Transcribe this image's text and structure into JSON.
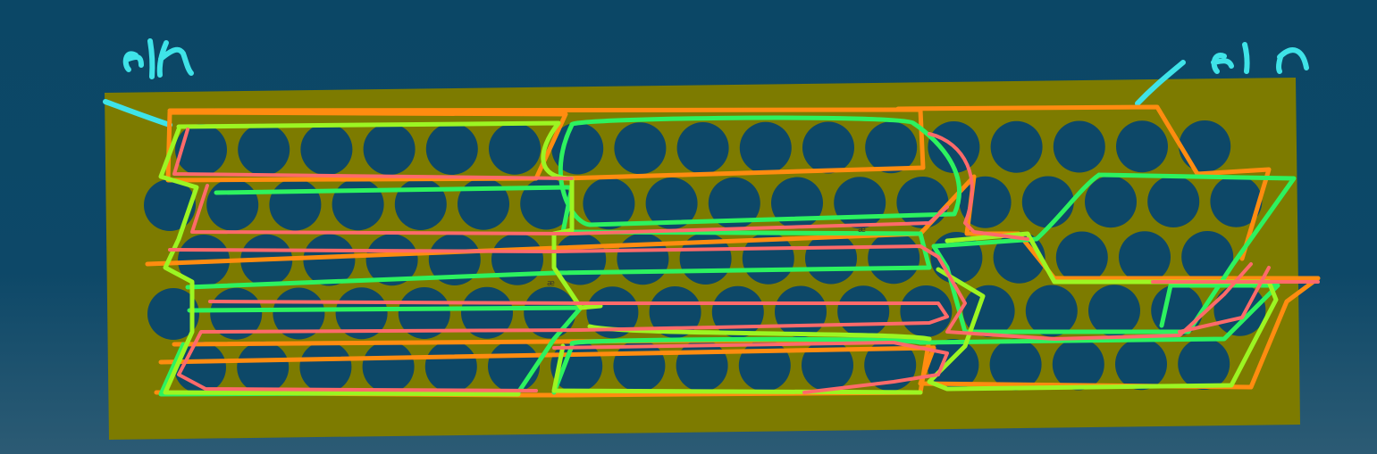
{
  "annotations": {
    "left_label": "elr",
    "right_label": "elr",
    "small_marks": [
      "æ",
      "æ"
    ]
  },
  "colors": {
    "background": "#0d4868",
    "plate": "#7d7b00",
    "hole": "#0d4868",
    "handwriting": "#3fe3e8",
    "orange": "#ff8c10",
    "green": "#2df25f",
    "lime": "#9cf522",
    "pink": "#ff6a6a"
  },
  "plate": {
    "rows": 5,
    "row_hole_counts": [
      17,
      18,
      17,
      18,
      17
    ]
  }
}
